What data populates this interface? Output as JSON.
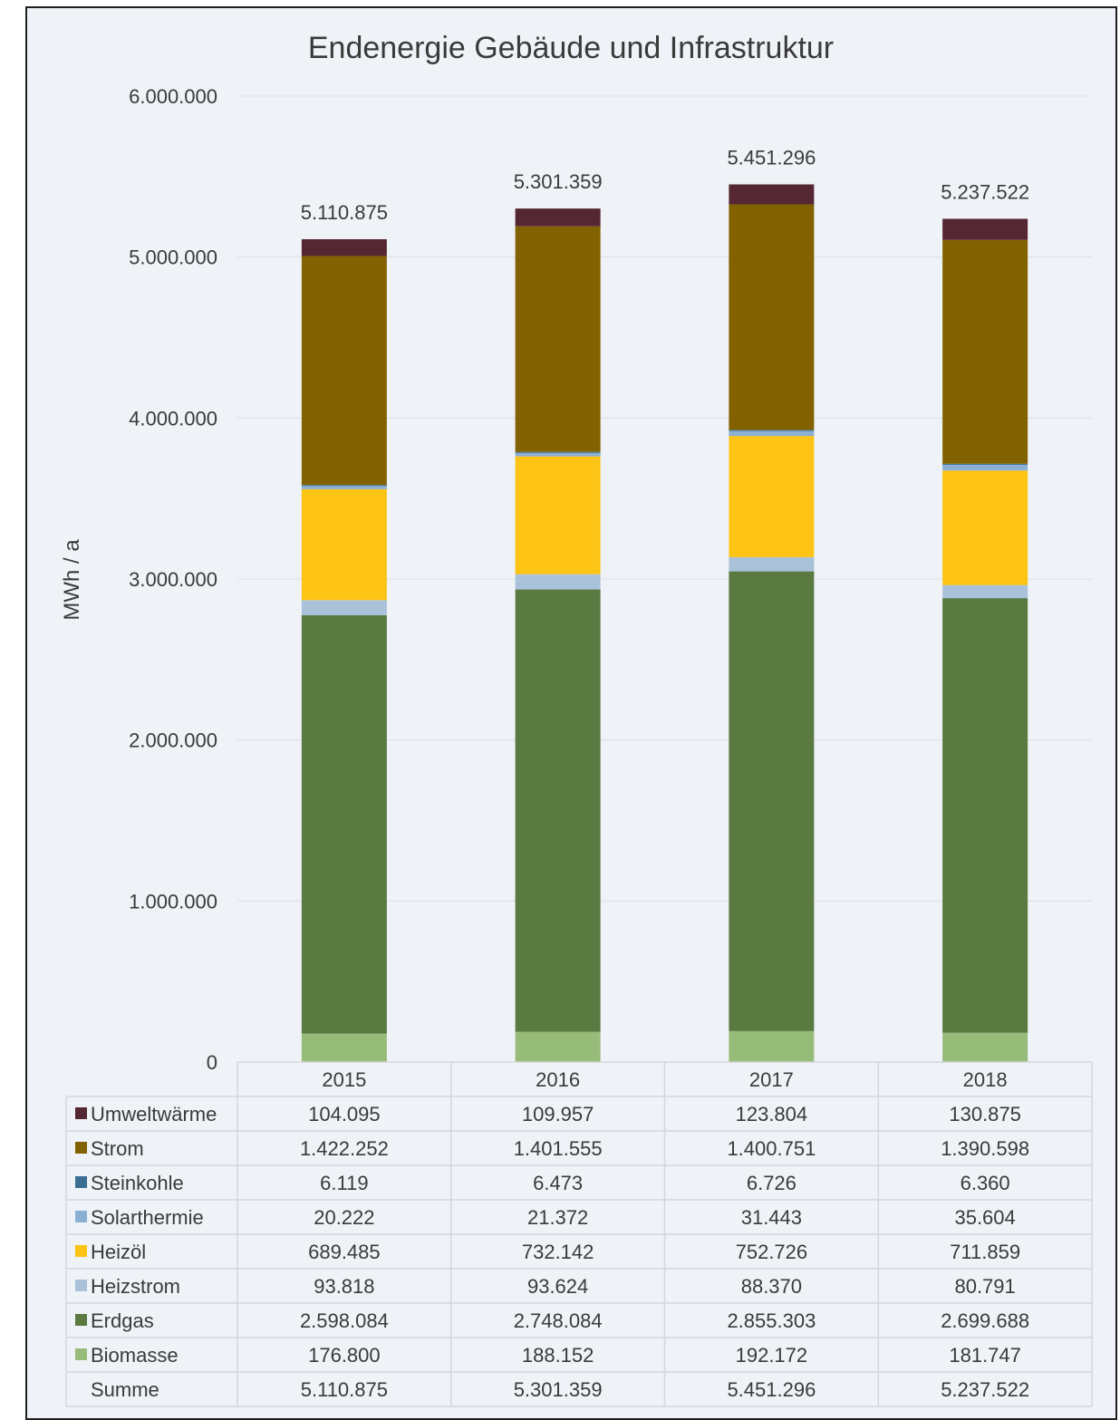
{
  "chart_data": {
    "type": "bar",
    "stacked": true,
    "title": "Endenergie Gebäude und Infrastruktur",
    "ylabel": "MWh / a",
    "xlabel": "",
    "ylim": [
      0,
      6000000
    ],
    "yticks": [
      0,
      1000000,
      2000000,
      3000000,
      4000000,
      5000000,
      6000000
    ],
    "ytick_labels": [
      "0",
      "1.000.000",
      "2.000.000",
      "3.000.000",
      "4.000.000",
      "5.000.000",
      "6.000.000"
    ],
    "grid": true,
    "legend": "data-table",
    "categories": [
      "2015",
      "2016",
      "2017",
      "2018"
    ],
    "series": [
      {
        "name": "Biomasse",
        "color": "#97bb79",
        "values": [
          176800,
          188152,
          192172,
          181747
        ],
        "labels": [
          "176.800",
          "188.152",
          "192.172",
          "181.747"
        ]
      },
      {
        "name": "Erdgas",
        "color": "#5a7a42",
        "values": [
          2598084,
          2748084,
          2855303,
          2699688
        ],
        "labels": [
          "2.598.084",
          "2.748.084",
          "2.855.303",
          "2.699.688"
        ]
      },
      {
        "name": "Heizstrom",
        "color": "#a9c2da",
        "values": [
          93818,
          93624,
          88370,
          80791
        ],
        "labels": [
          "93.818",
          "93.624",
          "88.370",
          "80.791"
        ]
      },
      {
        "name": "Heizöl",
        "color": "#fdc315",
        "values": [
          689485,
          732142,
          752726,
          711859
        ],
        "labels": [
          "689.485",
          "732.142",
          "752.726",
          "711.859"
        ]
      },
      {
        "name": "Solarthermie",
        "color": "#8bb0d4",
        "values": [
          20222,
          21372,
          31443,
          35604
        ],
        "labels": [
          "20.222",
          "21.372",
          "31.443",
          "35.604"
        ]
      },
      {
        "name": "Steinkohle",
        "color": "#3a6f93",
        "values": [
          6119,
          6473,
          6726,
          6360
        ],
        "labels": [
          "6.119",
          "6.473",
          "6.726",
          "6.360"
        ]
      },
      {
        "name": "Strom",
        "color": "#826200",
        "values": [
          1422252,
          1401555,
          1400751,
          1390598
        ],
        "labels": [
          "1.422.252",
          "1.401.555",
          "1.400.751",
          "1.390.598"
        ]
      },
      {
        "name": "Umweltwärme",
        "color": "#552733",
        "values": [
          104095,
          109957,
          123804,
          130875
        ],
        "labels": [
          "104.095",
          "109.957",
          "123.804",
          "130.875"
        ]
      }
    ],
    "totals": {
      "name": "Summe",
      "values": [
        5110875,
        5301359,
        5451296,
        5237522
      ],
      "labels": [
        "5.110.875",
        "5.301.359",
        "5.451.296",
        "5.237.522"
      ]
    },
    "table_row_order": [
      "Umweltwärme",
      "Strom",
      "Steinkohle",
      "Solarthermie",
      "Heizöl",
      "Heizstrom",
      "Erdgas",
      "Biomasse"
    ]
  }
}
